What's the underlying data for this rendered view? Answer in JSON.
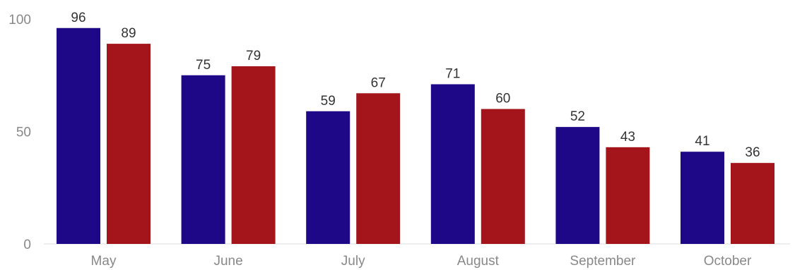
{
  "chart_data": {
    "type": "bar",
    "categories": [
      "May",
      "June",
      "July",
      "August",
      "September",
      "October"
    ],
    "series": [
      {
        "values": [
          96,
          75,
          59,
          71,
          52,
          41
        ],
        "color": "#1e0887"
      },
      {
        "values": [
          89,
          79,
          67,
          60,
          43,
          36
        ],
        "color": "#a3151b"
      }
    ],
    "ylim": [
      0,
      100
    ],
    "yticks": [
      0,
      50,
      100
    ],
    "title": "",
    "xlabel": "",
    "ylabel": "",
    "grid": false,
    "legend": "none"
  }
}
